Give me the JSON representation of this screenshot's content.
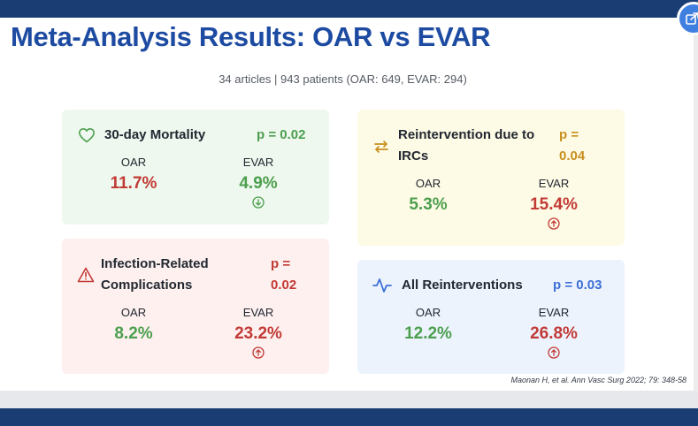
{
  "slide": {
    "title": "Meta-Analysis Results: OAR vs EVAR",
    "subtitle": "34 articles | 943 patients (OAR: 649, EVAR: 294)",
    "citation": "Maonan H, et al. Ann Vasc Surg 2022; 79: 348-58"
  },
  "cards": {
    "mortality": {
      "title": "30-day Mortality",
      "p_value": "p = 0.02",
      "icon": "heart-icon",
      "oar_label": "OAR",
      "oar_value": "11.7%",
      "evar_label": "EVAR",
      "evar_value": "4.9%",
      "trend": "down"
    },
    "reintervention_ircs": {
      "title_line1": "Reintervention due to",
      "title_line2": "IRCs",
      "p_line1": "p =",
      "p_line2": "0.04",
      "icon": "swap-arrows-icon",
      "oar_label": "OAR",
      "oar_value": "5.3%",
      "evar_label": "EVAR",
      "evar_value": "15.4%",
      "trend": "up"
    },
    "infection": {
      "title_line1": "Infection-Related",
      "title_line2": "Complications",
      "p_line1": "p =",
      "p_line2": "0.02",
      "icon": "warning-triangle-icon",
      "oar_label": "OAR",
      "oar_value": "8.2%",
      "evar_label": "EVAR",
      "evar_value": "23.2%",
      "trend": "up"
    },
    "all_reinterventions": {
      "title": "All Reinterventions",
      "p_value": "p = 0.03",
      "icon": "pulse-icon",
      "oar_label": "OAR",
      "oar_value": "12.2%",
      "evar_label": "EVAR",
      "evar_value": "26.8%",
      "trend": "up"
    }
  },
  "colors": {
    "title": "#1d4ba2",
    "green": "#4c9f4e",
    "red": "#c23a35",
    "gold": "#c8901e",
    "blue": "#3c6fd6",
    "frame": "#1a3e74"
  }
}
